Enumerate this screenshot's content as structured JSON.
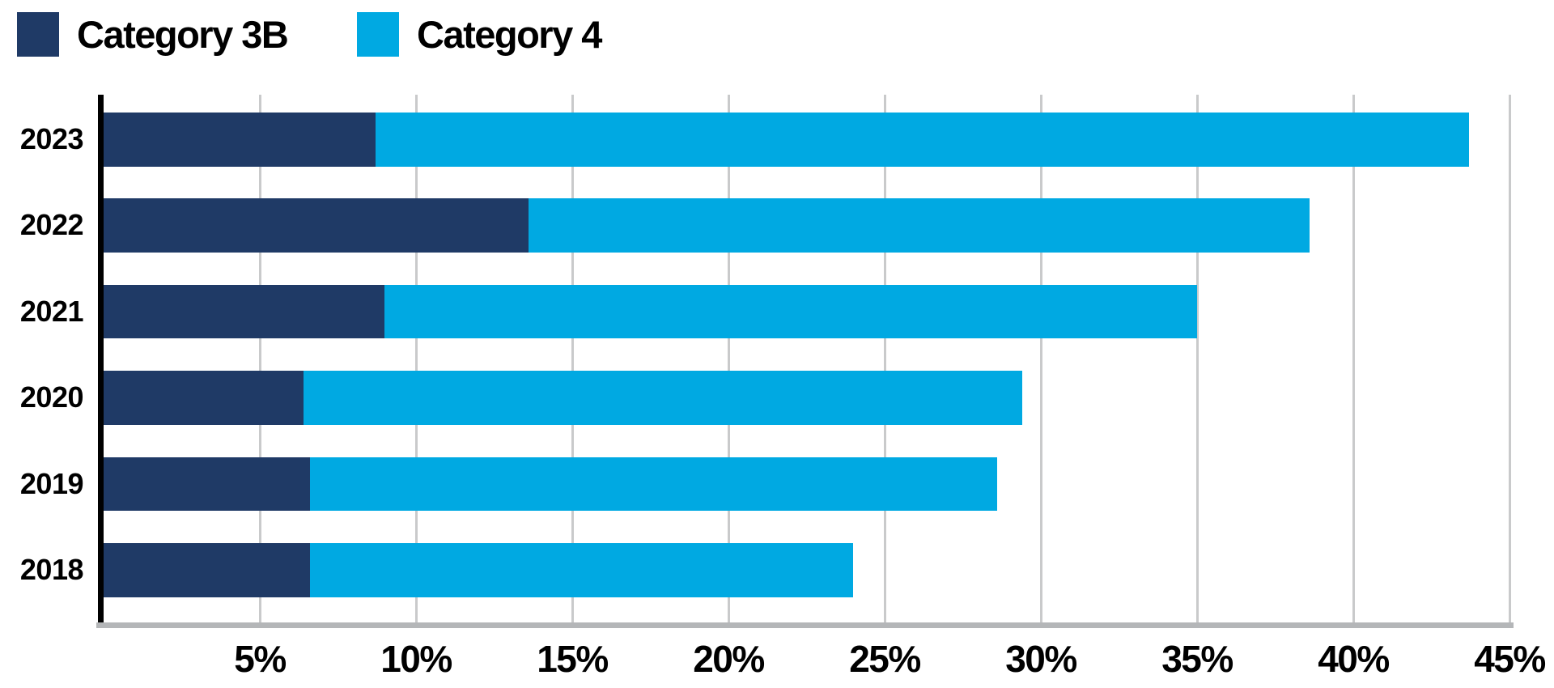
{
  "page": {
    "background": "#ffffff"
  },
  "legend": {
    "position": "top-left",
    "items": [
      {
        "label": "Category 3B",
        "color": "#1f3a66"
      },
      {
        "label": "Category 4",
        "color": "#00a9e2"
      }
    ]
  },
  "chart_data": {
    "type": "bar",
    "orientation": "horizontal",
    "stacked": true,
    "title": "",
    "xlabel": "",
    "ylabel": "",
    "categories": [
      "2023",
      "2022",
      "2021",
      "2020",
      "2019",
      "2018"
    ],
    "series": [
      {
        "name": "Category 3B",
        "color": "#1f3a66",
        "values": [
          8.7,
          13.6,
          9.0,
          6.4,
          6.6,
          6.6
        ]
      },
      {
        "name": "Category 4",
        "color": "#00a9e2",
        "values": [
          35.0,
          25.0,
          26.0,
          23.0,
          22.0,
          17.4
        ]
      }
    ],
    "totals": [
      43.7,
      38.6,
      35.0,
      29.4,
      28.6,
      24.0
    ],
    "value_unit": "%",
    "xlim": [
      0,
      45
    ],
    "x_ticks": [
      {
        "value": 5,
        "label": "5%"
      },
      {
        "value": 10,
        "label": "10%"
      },
      {
        "value": 15,
        "label": "15%"
      },
      {
        "value": 20,
        "label": "20%"
      },
      {
        "value": 25,
        "label": "25%"
      },
      {
        "value": 30,
        "label": "30%"
      },
      {
        "value": 35,
        "label": "35%"
      },
      {
        "value": 40,
        "label": "40%"
      },
      {
        "value": 45,
        "label": "45%"
      }
    ],
    "grid": "vertical",
    "gridline_color": "#c9cacb",
    "axis_line_color": "#000000",
    "baseline_color": "#b4b6b8",
    "legend_position": "top-left"
  }
}
